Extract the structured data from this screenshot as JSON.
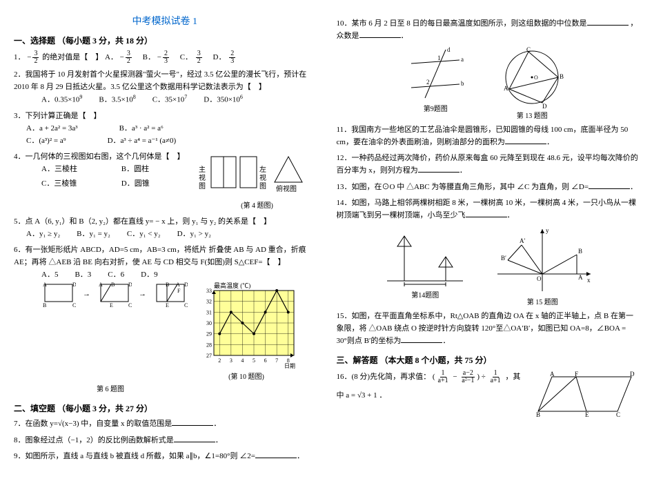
{
  "title": "中考模拟试卷 1",
  "section1_h": "一、选择题 （每小题 3 分，共 18 分）",
  "q1": {
    "stem_a": "1．",
    "stem_b": "的绝对值是【　】",
    "A": "A．",
    "B": "B．",
    "C": "C．",
    "D": "D．"
  },
  "q2": {
    "line1": "2．我国将于 10 月发射首个火星探测器\"萤火一号\"，经过 3.5 亿公里的漫长飞行，预计在 2010 年 8 月 29 日抵达火星。3.5 亿公里这个数据用科学记数法表示为【　】",
    "A": "A．0.35×10",
    "A_exp": "9",
    "B": "B．3.5×10",
    "B_exp": "8",
    "C": "C．35×10",
    "C_exp": "7",
    "D": "D．350×10",
    "D_exp": "6"
  },
  "q3": {
    "stem": "3．下列计算正确是【　】",
    "A": "A．a + 2a² = 3a³",
    "B": "B．a³ · a² = a⁶",
    "C": "C．(a³)² = a⁹",
    "D": "D．a³ ÷ a⁴ = a⁻¹ (a≠0)"
  },
  "q4": {
    "stem": "4．一几何体的三视图如右图，这个几何体是【　】",
    "A": "A．三棱柱",
    "B": "B．圆柱",
    "C": "C．三棱锥",
    "D": "D．圆锥",
    "lbl_main": "主视图",
    "lbl_left": "左视图",
    "lbl_top": "俯视图",
    "cap": "(第 4 题图)"
  },
  "q5": {
    "stem": "5．点 A（6, y₁）和 B（2, y₂）都在直线 y= − x 上，则 y₁ 与 y₂ 的关系是【　】",
    "A": "A．y₁ ≥ y₂",
    "B": "B．y₁ = y₂",
    "C": "C．y₁ < y₂",
    "D": "D．y₁ > y₂"
  },
  "q6": {
    "stem": "6．有一张矩形纸片 ABCD，AD=5 cm，AB=3 cm，将纸片 折叠使 AB 与 AD 重合，折痕 AE；再将 △AEB 沿 BE 向右对折，使 AE 与 CD 相交与 F(如图)则 S△CEF=【　】",
    "A": "A．5",
    "B": "B．3",
    "C": "C．6",
    "D": "D．9",
    "cap": "第 6 题图"
  },
  "section2_h": "二、填空题 （每小题 3 分，共 27 分）",
  "q7": "7．在函数 y=√(x−3) 中，自变量 x 的取值范围是",
  "q8": "8．图象经过点（−1，2）的反比例函数解析式是",
  "q9": "9．如图所示，直线 a 与直线 b 被直线 d 所截，如果 a∥b，∠1=80°则 ∠2=",
  "q10": {
    "stem": "10．某市 6 月 2 日至 8 日的每日最高温度如图所示，则这组数据的中位数是",
    "stem2": "，众数是",
    "chart": {
      "title": "最高温度 (℃)",
      "xlabel": "日期",
      "xticks": [
        "2",
        "3",
        "4",
        "5",
        "6",
        "7",
        "8"
      ],
      "yticks": [
        27,
        28,
        29,
        30,
        31,
        32,
        33
      ],
      "ylim": [
        27,
        33
      ],
      "points_y": [
        29,
        31,
        30,
        29,
        31,
        33,
        31
      ],
      "bg": "#ffff99",
      "line_color": "#000000",
      "grid_color": "#000000",
      "cap": "(第 10 题图)"
    }
  },
  "fig9": {
    "cap": "第9题图"
  },
  "fig13": {
    "cap": "第 13 题图"
  },
  "q11": "11．我国南方一些地区的工艺品油伞是圆锥形，已知圆锥的母线 100 cm，底面半径为 50 cm，要在油伞的外表面刷油，则刷油部分的面积为",
  "q12": {
    "a": "12．一种药品经过两次降价，药价从原来每盒 60 元降至到现在 48.6 元，设平均每次降价的百分率为 x，则列方程为"
  },
  "q13": "13．如图，在⊙O 中 △ABC 为等腰直角三角形，其中 ∠C 为直角，则 ∠D=",
  "q14": {
    "a": "14．如图，马路上相邻两棵树相距 8 米，一棵树高 10 米，一棵树高 4 米，一只小鸟从一棵树顶端飞到另一棵树顶端，小鸟至少飞",
    "cap": "第14题图"
  },
  "fig15": {
    "cap": "第 15 题图"
  },
  "q15": "15．如图，在平面直角坐标系中，Rt△OAB 的直角边 OA 在 x 轴的正半轴上，点 B 在第一象限，将 △OAB 绕点 O 按逆时针方向旋转 120°至△OA′B′，如图已知 OA=8，∠BOA = 30°则点 B′的坐标为",
  "section3_h": "三、解答题 （本大题 8 个小题，共 75 分）",
  "q16": {
    "a": "16．(8 分)先化简，再求值：",
    "expr": "( 1/(a+1) − (a−2)/(a²−1) ) ÷ 1/(a+1) ，其中",
    "b": "中 a = √3 + 1 ．"
  }
}
